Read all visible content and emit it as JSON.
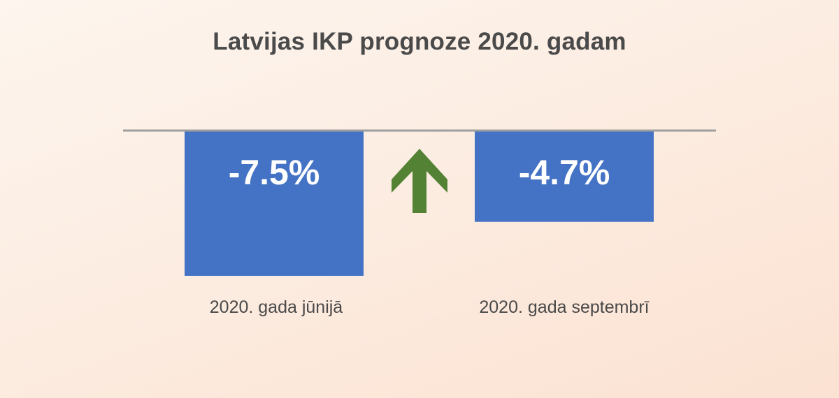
{
  "chart_data": {
    "type": "bar",
    "title": "Latvijas IKP prognoze 2020. gadam",
    "categories": [
      "2020. gada jūnijā",
      "2020. gada septembrī"
    ],
    "values": [
      -7.5,
      -4.7
    ],
    "value_labels": [
      "-7.5%",
      "-4.7%"
    ],
    "unit": "%",
    "ylim": [
      -8,
      0
    ],
    "grid": false,
    "legend": "none",
    "annotation": "up-arrow",
    "colors": {
      "bar": "#4472c4",
      "baseline": "#9e9e9e",
      "arrow": "#548235",
      "title": "#4a4a4a",
      "value_text": "#ffffff",
      "category_text": "#4a4a4a"
    }
  }
}
